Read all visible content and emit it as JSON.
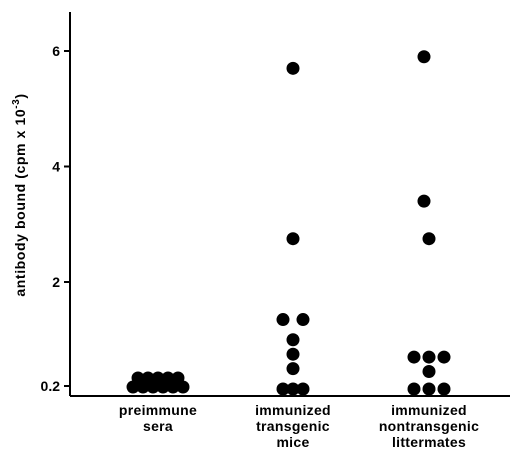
{
  "chart_data": {
    "type": "scatter",
    "ylabel": "antibody bound",
    "ylabel_unit": "(cpm x 10",
    "ylabel_exp": "-3",
    "ylabel_close": ")",
    "yticks": [
      0.2,
      2,
      4,
      6
    ],
    "ytick_labels": [
      "0.2",
      "2",
      "4",
      "6"
    ],
    "ylim": [
      0.0,
      6.6
    ],
    "categories": [
      {
        "lines": [
          "preimmune",
          "sera"
        ]
      },
      {
        "lines": [
          "immunized",
          "transgenic",
          "mice"
        ]
      },
      {
        "lines": [
          "immunized",
          "nontransgenic",
          "littermates"
        ]
      }
    ],
    "series": [
      {
        "category_index": 0,
        "points": [
          {
            "x": -0.25,
            "y": 0.2
          },
          {
            "x": -0.15,
            "y": 0.2
          },
          {
            "x": -0.05,
            "y": 0.2
          },
          {
            "x": 0.05,
            "y": 0.2
          },
          {
            "x": 0.15,
            "y": 0.2
          },
          {
            "x": 0.25,
            "y": 0.2
          },
          {
            "x": -0.2,
            "y": 0.35
          },
          {
            "x": -0.1,
            "y": 0.35
          },
          {
            "x": 0.0,
            "y": 0.35
          },
          {
            "x": 0.1,
            "y": 0.35
          },
          {
            "x": 0.2,
            "y": 0.35
          }
        ]
      },
      {
        "category_index": 1,
        "points": [
          {
            "x": 0.0,
            "y": 5.7
          },
          {
            "x": 0.0,
            "y": 2.75
          },
          {
            "x": -0.1,
            "y": 1.35
          },
          {
            "x": 0.1,
            "y": 1.35
          },
          {
            "x": 0.0,
            "y": 1.0
          },
          {
            "x": 0.0,
            "y": 0.75
          },
          {
            "x": 0.0,
            "y": 0.5
          },
          {
            "x": -0.1,
            "y": 0.15
          },
          {
            "x": 0.0,
            "y": 0.15
          },
          {
            "x": 0.1,
            "y": 0.15
          }
        ]
      },
      {
        "category_index": 2,
        "points": [
          {
            "x": -0.05,
            "y": 5.9
          },
          {
            "x": -0.05,
            "y": 3.4
          },
          {
            "x": 0.0,
            "y": 2.75
          },
          {
            "x": -0.15,
            "y": 0.7
          },
          {
            "x": 0.0,
            "y": 0.7
          },
          {
            "x": 0.15,
            "y": 0.7
          },
          {
            "x": 0.0,
            "y": 0.45
          },
          {
            "x": -0.15,
            "y": 0.15
          },
          {
            "x": 0.0,
            "y": 0.15
          },
          {
            "x": 0.15,
            "y": 0.15
          }
        ]
      }
    ],
    "marker_color": "#000000",
    "grid": false
  }
}
